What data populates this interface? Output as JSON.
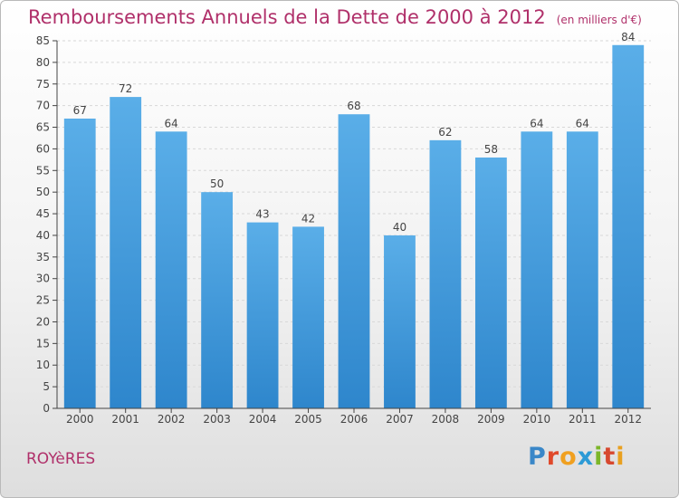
{
  "title": "Remboursements Annuels de la Dette de 2000 à 2012",
  "unit": "(en milliers d'€)",
  "commune": "ROYèRES",
  "logo": {
    "letters": [
      "P",
      "r",
      "o",
      "x",
      "i",
      "t",
      "i"
    ]
  },
  "colors": {
    "bar": "#2e86cc",
    "bar_light": "#5aaee8",
    "title": "#b0306a",
    "axis": "#444444",
    "grid": "#d8d8d8"
  },
  "chart_data": {
    "type": "bar",
    "categories": [
      "2000",
      "2001",
      "2002",
      "2003",
      "2004",
      "2005",
      "2006",
      "2007",
      "2008",
      "2009",
      "2010",
      "2011",
      "2012"
    ],
    "values": [
      67,
      72,
      64,
      50,
      43,
      42,
      68,
      40,
      62,
      58,
      64,
      64,
      84
    ],
    "ylim": [
      0,
      85
    ],
    "yticks": [
      0,
      5,
      10,
      15,
      20,
      25,
      30,
      35,
      40,
      45,
      50,
      55,
      60,
      65,
      70,
      75,
      80,
      85
    ],
    "grid": true,
    "data_labels": true
  }
}
